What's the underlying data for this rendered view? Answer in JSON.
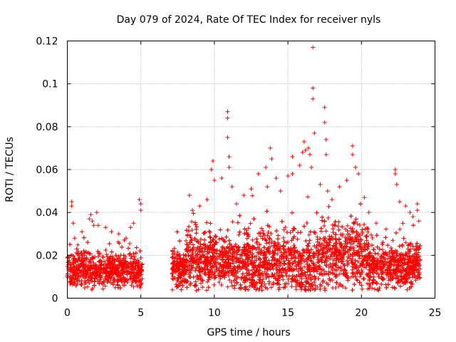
{
  "chart_data": {
    "type": "scatter",
    "title": "Day 079 of 2024, Rate Of TEC Index for receiver nyls",
    "xlabel": "GPS time / hours",
    "ylabel": "ROTI / TECUs",
    "xlim": [
      0,
      25
    ],
    "ylim": [
      0,
      0.12
    ],
    "x_ticks": [
      0,
      5,
      10,
      15,
      20,
      25
    ],
    "x_tick_labels": [
      "0",
      "5",
      "10",
      "15",
      "20",
      "25"
    ],
    "y_ticks": [
      0,
      0.02,
      0.04,
      0.06,
      0.08,
      0.1,
      0.12
    ],
    "y_tick_labels": [
      "0",
      "0.02",
      "0.04",
      "0.06",
      "0.08",
      "0.1",
      "0.12"
    ],
    "grid": true,
    "marker": "+",
    "color": "#ff0000",
    "data_gaps_hours": [
      [
        5.1,
        7.1
      ]
    ],
    "series": [
      {
        "name": "ROTI",
        "points": [
          [
            0.1,
            0.013
          ],
          [
            0.3,
            0.045
          ],
          [
            0.3,
            0.043
          ],
          [
            0.4,
            0.035
          ],
          [
            0.5,
            0.028
          ],
          [
            1.0,
            0.031
          ],
          [
            1.5,
            0.037
          ],
          [
            1.6,
            0.039
          ],
          [
            1.7,
            0.036
          ],
          [
            1.8,
            0.034
          ],
          [
            2.0,
            0.04
          ],
          [
            2.1,
            0.034
          ],
          [
            2.6,
            0.033
          ],
          [
            3.0,
            0.031
          ],
          [
            3.5,
            0.03
          ],
          [
            4.0,
            0.028
          ],
          [
            4.3,
            0.033
          ],
          [
            4.5,
            0.035
          ],
          [
            4.9,
            0.046
          ],
          [
            5.0,
            0.044
          ],
          [
            5.0,
            0.041
          ],
          [
            8.3,
            0.048
          ],
          [
            8.5,
            0.041
          ],
          [
            9.0,
            0.043
          ],
          [
            9.5,
            0.046
          ],
          [
            9.8,
            0.06
          ],
          [
            9.9,
            0.064
          ],
          [
            10.0,
            0.055
          ],
          [
            10.5,
            0.056
          ],
          [
            10.9,
            0.087
          ],
          [
            10.9,
            0.084
          ],
          [
            10.9,
            0.075
          ],
          [
            11.0,
            0.066
          ],
          [
            11.0,
            0.061
          ],
          [
            11.2,
            0.052
          ],
          [
            11.5,
            0.044
          ],
          [
            12.0,
            0.048
          ],
          [
            12.5,
            0.051
          ],
          [
            13.0,
            0.058
          ],
          [
            13.5,
            0.061
          ],
          [
            13.6,
            0.052
          ],
          [
            13.8,
            0.07
          ],
          [
            13.9,
            0.065
          ],
          [
            14.2,
            0.056
          ],
          [
            14.5,
            0.05
          ],
          [
            15.0,
            0.057
          ],
          [
            15.3,
            0.058
          ],
          [
            15.3,
            0.066
          ],
          [
            15.8,
            0.062
          ],
          [
            16.0,
            0.068
          ],
          [
            16.1,
            0.073
          ],
          [
            16.2,
            0.069
          ],
          [
            16.4,
            0.07
          ],
          [
            16.5,
            0.067
          ],
          [
            16.6,
            0.061
          ],
          [
            16.7,
            0.117
          ],
          [
            16.7,
            0.098
          ],
          [
            16.7,
            0.093
          ],
          [
            16.8,
            0.077
          ],
          [
            17.2,
            0.053
          ],
          [
            17.5,
            0.089
          ],
          [
            17.5,
            0.082
          ],
          [
            17.6,
            0.074
          ],
          [
            17.6,
            0.067
          ],
          [
            17.7,
            0.05
          ],
          [
            18.0,
            0.046
          ],
          [
            18.5,
            0.052
          ],
          [
            19.0,
            0.055
          ],
          [
            19.4,
            0.071
          ],
          [
            19.4,
            0.067
          ],
          [
            19.6,
            0.061
          ],
          [
            19.8,
            0.058
          ],
          [
            20.2,
            0.047
          ],
          [
            20.5,
            0.04
          ],
          [
            21.0,
            0.035
          ],
          [
            22.3,
            0.06
          ],
          [
            22.3,
            0.058
          ],
          [
            22.4,
            0.053
          ],
          [
            22.6,
            0.045
          ],
          [
            23.0,
            0.043
          ],
          [
            23.3,
            0.04
          ],
          [
            23.5,
            0.038
          ],
          [
            23.8,
            0.044
          ],
          [
            23.8,
            0.041
          ],
          [
            23.9,
            0.036
          ]
        ]
      }
    ]
  }
}
